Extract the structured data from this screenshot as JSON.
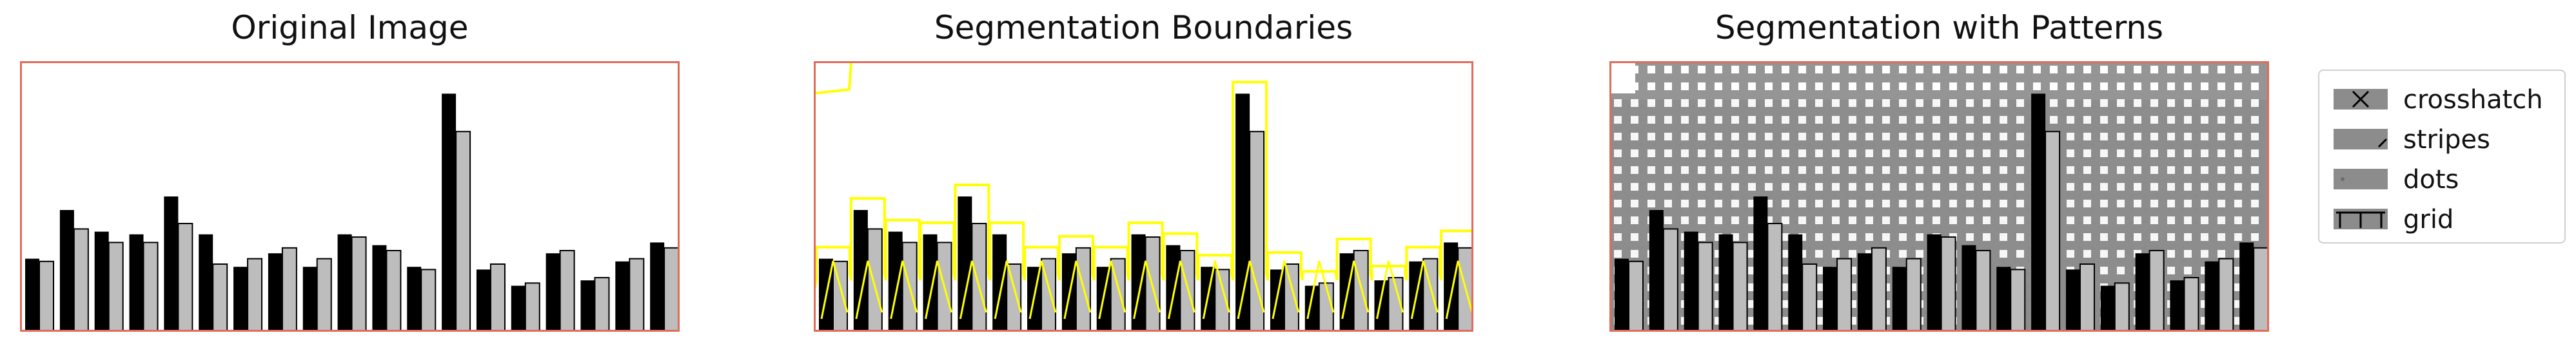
{
  "panels": [
    {
      "title": "Original Image"
    },
    {
      "title": "Segmentation Boundaries"
    },
    {
      "title": "Segmentation with Patterns"
    }
  ],
  "legend": {
    "items": [
      {
        "label": "crosshatch",
        "icon": "crosshatch-swatch"
      },
      {
        "label": "stripes",
        "icon": "stripes-swatch"
      },
      {
        "label": "dots",
        "icon": "dots-swatch"
      },
      {
        "label": "grid",
        "icon": "grid-swatch"
      }
    ]
  },
  "colors": {
    "frame": "#e06c5a",
    "dark_bar": "#000000",
    "light_bar": "#bdbdbd",
    "boundary": "#ffff00",
    "pattern_fill": "#8c8c8c"
  },
  "bars": {
    "dark": [
      0.27,
      0.45,
      0.37,
      0.36,
      0.5,
      0.36,
      0.24,
      0.29,
      0.24,
      0.36,
      0.32,
      0.24,
      0.88,
      0.23,
      0.17,
      0.29,
      0.19,
      0.26,
      0.33
    ],
    "light": [
      0.26,
      0.38,
      0.33,
      0.33,
      0.4,
      0.25,
      0.27,
      0.31,
      0.27,
      0.35,
      0.3,
      0.23,
      0.74,
      0.25,
      0.18,
      0.3,
      0.2,
      0.27,
      0.31
    ]
  }
}
